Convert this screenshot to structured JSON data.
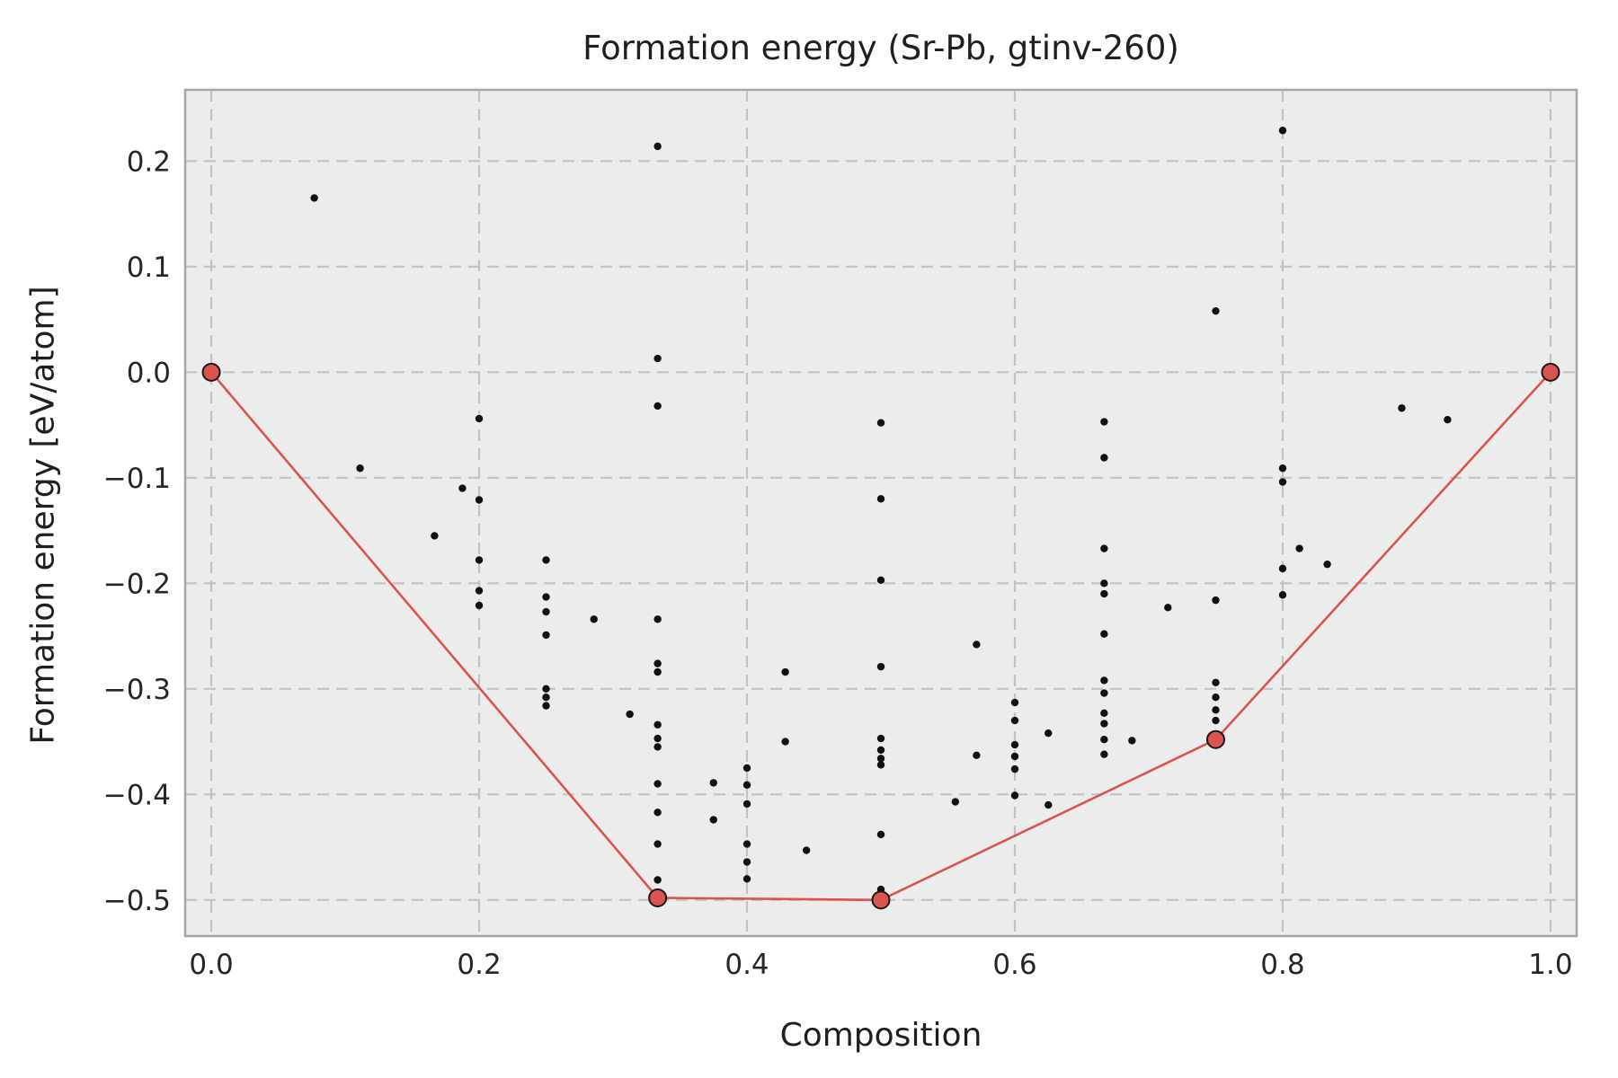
{
  "chart_data": {
    "type": "scatter",
    "title": "Formation energy (Sr-Pb, gtinv-260)",
    "xlabel": "Composition",
    "ylabel": "Formation energy [eV/atom]",
    "xlim": [
      -0.0195,
      1.0195
    ],
    "ylim": [
      -0.5342,
      0.2675
    ],
    "grid": true,
    "legend": false,
    "x_ticks": {
      "values": [
        0.0,
        0.2,
        0.4,
        0.6,
        0.8,
        1.0
      ],
      "labels": [
        "0.0",
        "0.2",
        "0.4",
        "0.6",
        "0.8",
        "1.0"
      ]
    },
    "y_ticks": {
      "values": [
        0.2,
        0.1,
        0.0,
        -0.1,
        -0.2,
        -0.3,
        -0.4,
        -0.5
      ],
      "labels": [
        "0.2",
        "0.1",
        "0.0",
        "−0.1",
        "−0.2",
        "−0.3",
        "−0.4",
        "−0.5"
      ]
    },
    "colors": {
      "plot_background": "#ececec",
      "grid": "#c2c2c2",
      "spine": "#a6a6a6",
      "scatter": "#111111",
      "hull": "#d9534f",
      "hull_edge": "#1a1a1a"
    },
    "series": [
      {
        "name": "structures",
        "type": "scatter",
        "points": [
          [
            0.0769,
            0.165
          ],
          [
            0.1111,
            -0.091
          ],
          [
            0.1667,
            -0.155
          ],
          [
            0.1875,
            -0.11
          ],
          [
            0.2,
            -0.044
          ],
          [
            0.2,
            -0.121
          ],
          [
            0.2,
            -0.178
          ],
          [
            0.2,
            -0.207
          ],
          [
            0.2,
            -0.221
          ],
          [
            0.25,
            -0.178
          ],
          [
            0.25,
            -0.213
          ],
          [
            0.25,
            -0.227
          ],
          [
            0.25,
            -0.249
          ],
          [
            0.25,
            -0.3
          ],
          [
            0.25,
            -0.308
          ],
          [
            0.25,
            -0.316
          ],
          [
            0.2857,
            -0.234
          ],
          [
            0.3125,
            -0.324
          ],
          [
            0.3333,
            0.214
          ],
          [
            0.3333,
            0.013
          ],
          [
            0.3333,
            -0.032
          ],
          [
            0.3333,
            -0.234
          ],
          [
            0.3333,
            -0.276
          ],
          [
            0.3333,
            -0.284
          ],
          [
            0.3333,
            -0.334
          ],
          [
            0.3333,
            -0.347
          ],
          [
            0.3333,
            -0.355
          ],
          [
            0.3333,
            -0.39
          ],
          [
            0.3333,
            -0.417
          ],
          [
            0.3333,
            -0.447
          ],
          [
            0.3333,
            -0.481
          ],
          [
            0.375,
            -0.389
          ],
          [
            0.375,
            -0.424
          ],
          [
            0.4,
            -0.375
          ],
          [
            0.4,
            -0.391
          ],
          [
            0.4,
            -0.409
          ],
          [
            0.4,
            -0.447
          ],
          [
            0.4,
            -0.464
          ],
          [
            0.4,
            -0.48
          ],
          [
            0.4286,
            -0.284
          ],
          [
            0.4286,
            -0.35
          ],
          [
            0.4444,
            -0.453
          ],
          [
            0.5,
            -0.048
          ],
          [
            0.5,
            -0.12
          ],
          [
            0.5,
            -0.197
          ],
          [
            0.5,
            -0.279
          ],
          [
            0.5,
            -0.347
          ],
          [
            0.5,
            -0.358
          ],
          [
            0.5,
            -0.366
          ],
          [
            0.5,
            -0.372
          ],
          [
            0.5,
            -0.438
          ],
          [
            0.5,
            -0.49
          ],
          [
            0.5556,
            -0.407
          ],
          [
            0.5714,
            -0.258
          ],
          [
            0.5714,
            -0.363
          ],
          [
            0.6,
            -0.313
          ],
          [
            0.6,
            -0.33
          ],
          [
            0.6,
            -0.353
          ],
          [
            0.6,
            -0.364
          ],
          [
            0.6,
            -0.376
          ],
          [
            0.6,
            -0.401
          ],
          [
            0.625,
            -0.342
          ],
          [
            0.625,
            -0.41
          ],
          [
            0.6667,
            -0.047
          ],
          [
            0.6667,
            -0.081
          ],
          [
            0.6667,
            -0.167
          ],
          [
            0.6667,
            -0.2
          ],
          [
            0.6667,
            -0.21
          ],
          [
            0.6667,
            -0.248
          ],
          [
            0.6667,
            -0.292
          ],
          [
            0.6667,
            -0.304
          ],
          [
            0.6667,
            -0.323
          ],
          [
            0.6667,
            -0.333
          ],
          [
            0.6667,
            -0.348
          ],
          [
            0.6667,
            -0.362
          ],
          [
            0.6875,
            -0.349
          ],
          [
            0.7143,
            -0.223
          ],
          [
            0.75,
            0.058
          ],
          [
            0.75,
            -0.216
          ],
          [
            0.75,
            -0.294
          ],
          [
            0.75,
            -0.308
          ],
          [
            0.75,
            -0.32
          ],
          [
            0.75,
            -0.33
          ],
          [
            0.8,
            0.229
          ],
          [
            0.8,
            -0.091
          ],
          [
            0.8,
            -0.104
          ],
          [
            0.8,
            -0.186
          ],
          [
            0.8,
            -0.211
          ],
          [
            0.8125,
            -0.167
          ],
          [
            0.8333,
            -0.182
          ],
          [
            0.8889,
            -0.034
          ],
          [
            0.9231,
            -0.045
          ]
        ]
      },
      {
        "name": "convex-hull",
        "type": "line",
        "points": [
          [
            0.0,
            0.0
          ],
          [
            0.3333,
            -0.498
          ],
          [
            0.5,
            -0.5
          ],
          [
            0.75,
            -0.348
          ],
          [
            1.0,
            0.0
          ]
        ]
      }
    ]
  }
}
